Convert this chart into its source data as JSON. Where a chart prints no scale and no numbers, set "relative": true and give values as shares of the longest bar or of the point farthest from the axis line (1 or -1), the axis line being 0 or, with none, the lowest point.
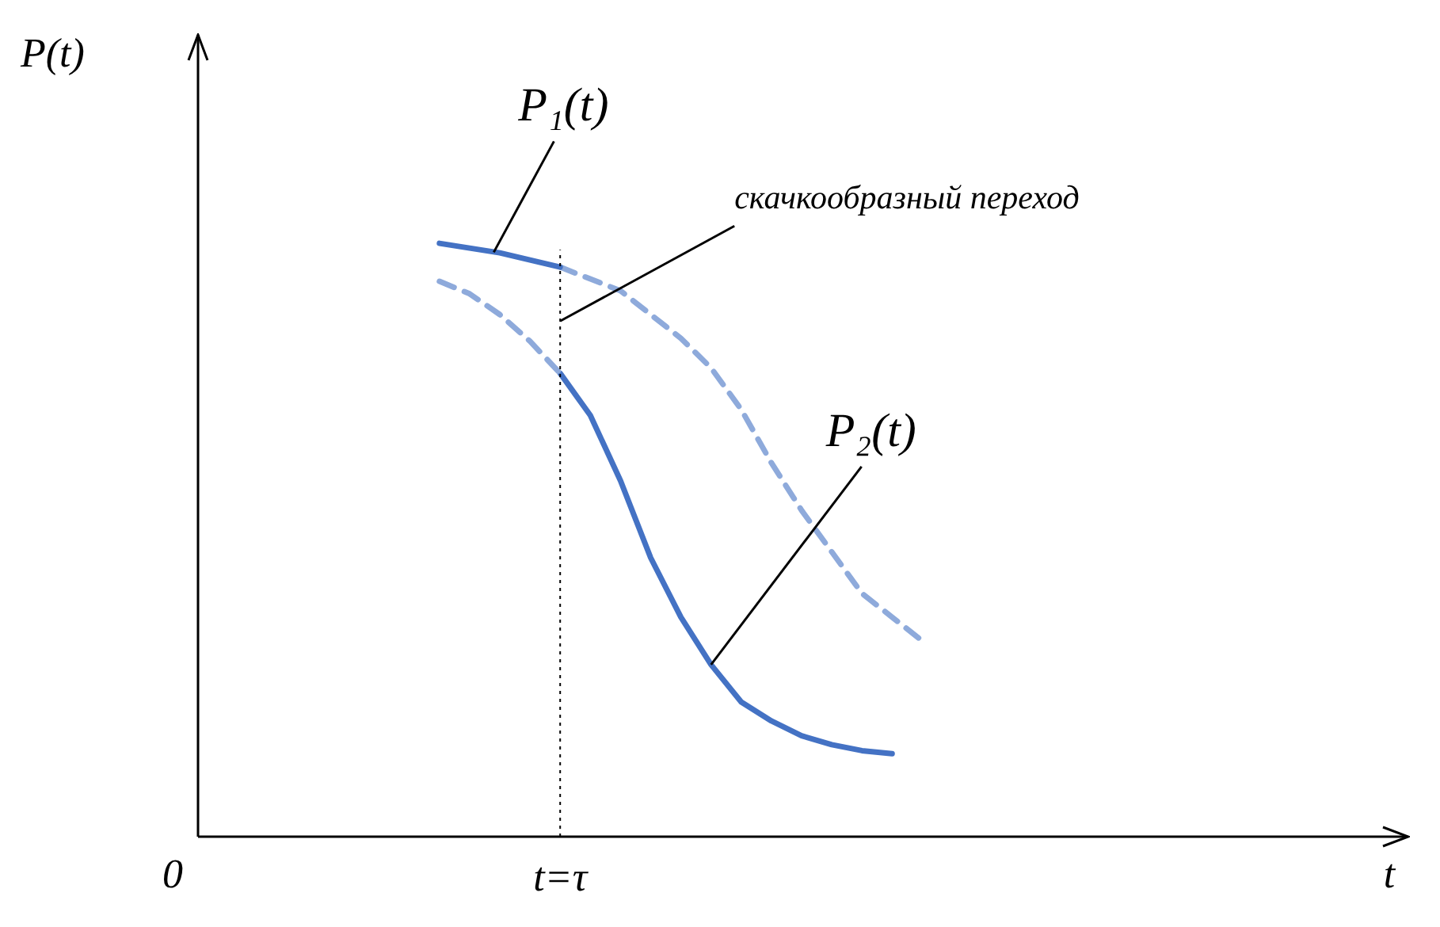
{
  "chart_data": {
    "type": "line",
    "relative": true,
    "xlabel": "t",
    "ylabel": "P(t)",
    "legend": false,
    "marker": "none",
    "categories": [
      null,
      null,
      null,
      null,
      null,
      null,
      null,
      null,
      null,
      null,
      null,
      null,
      null,
      null,
      null,
      null,
      null,
      null,
      null,
      null,
      null,
      null,
      null,
      null,
      null,
      null,
      null,
      null,
      null,
      null,
      null,
      null,
      null,
      null,
      null,
      null,
      null,
      null,
      null,
      null,
      null
    ],
    "series": [
      {
        "color": "#4472c4",
        "line_style": "solid",
        "values": [
          null,
          null,
          null,
          null,
          null,
          null,
          null,
          null,
          1.0,
          0.992,
          0.984,
          0.972,
          0.96,
          null,
          null,
          null,
          null,
          null,
          null,
          null,
          null,
          null,
          null,
          null,
          null,
          null,
          null,
          null,
          null,
          null,
          null,
          null,
          null,
          null,
          null,
          null,
          null,
          null,
          null,
          null,
          null
        ]
      },
      {
        "color": "#8eaadb",
        "line_style": "dashed",
        "values": [
          null,
          null,
          null,
          null,
          null,
          null,
          null,
          null,
          null,
          null,
          null,
          null,
          0.96,
          0.94,
          0.92,
          0.88,
          0.84,
          0.79,
          0.72,
          0.63,
          0.55,
          0.48,
          0.41,
          0.37,
          0.33,
          null,
          null,
          null,
          null,
          null,
          null,
          null,
          null,
          null,
          null,
          null,
          null,
          null,
          null,
          null,
          null
        ]
      },
      {
        "color": "#8eaadb",
        "line_style": "dashed",
        "values": [
          null,
          null,
          null,
          null,
          null,
          null,
          null,
          null,
          0.936,
          0.915,
          0.88,
          0.835,
          0.781,
          null,
          null,
          null,
          null,
          null,
          null,
          null,
          null,
          null,
          null,
          null,
          null,
          null,
          null,
          null,
          null,
          null,
          null,
          null,
          null,
          null,
          null,
          null,
          null,
          null,
          null,
          null,
          null
        ]
      },
      {
        "color": "#4472c4",
        "line_style": "solid",
        "values": [
          null,
          null,
          null,
          null,
          null,
          null,
          null,
          null,
          null,
          null,
          null,
          null,
          0.781,
          0.71,
          0.6,
          0.47,
          0.37,
          0.29,
          0.227,
          0.195,
          0.17,
          0.155,
          0.145,
          0.14,
          null,
          null,
          null,
          null,
          null,
          null,
          null,
          null,
          null,
          null,
          null,
          null,
          null,
          null,
          null,
          null,
          null
        ]
      }
    ],
    "annotations": [
      "0",
      "t=τ",
      "P₁(t)",
      "скачкообразный переход",
      "P₂(t)"
    ]
  }
}
